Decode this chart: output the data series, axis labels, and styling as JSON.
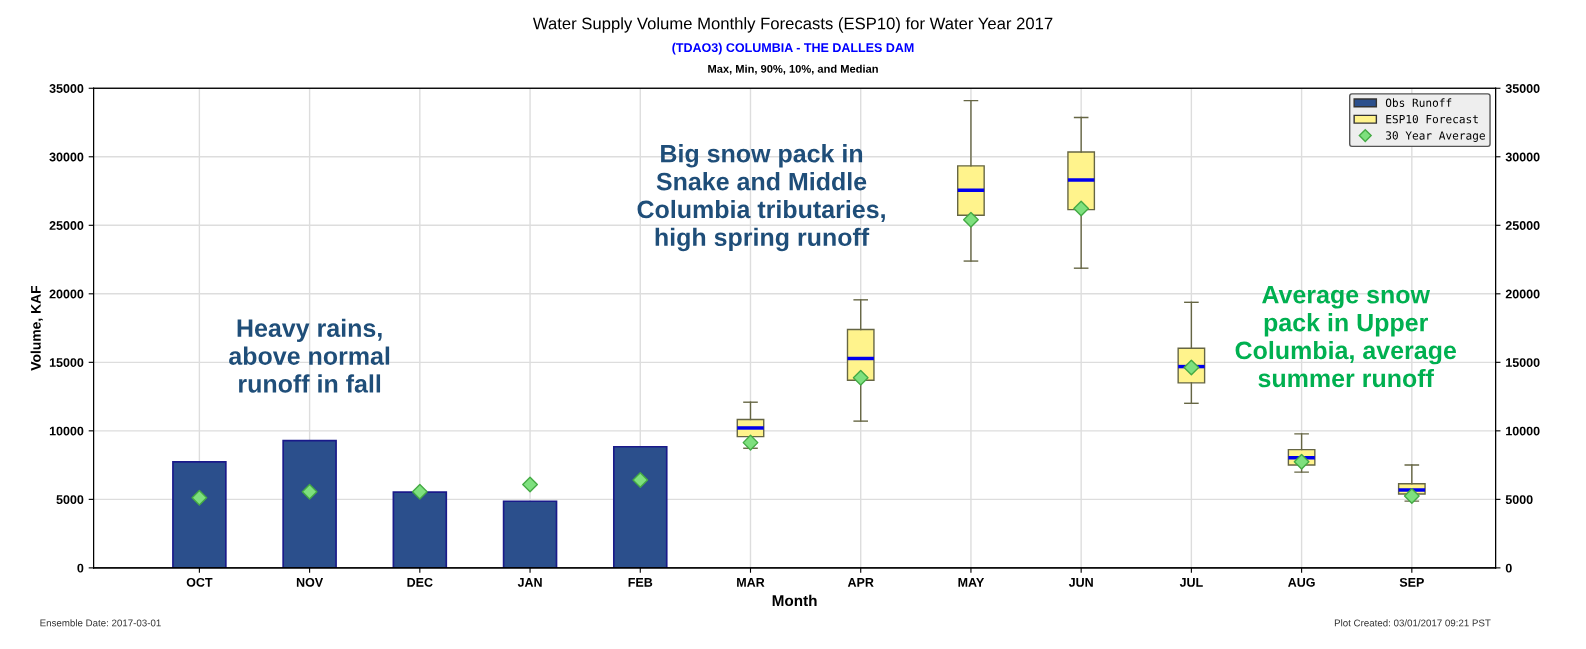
{
  "chart_data": {
    "type": "bar",
    "title": "Water Supply Volume Monthly Forecasts (ESP10) for Water Year 2017",
    "subtitle": "(TDAO3) COLUMBIA - THE DALLES DAM",
    "xlabel": "Month",
    "ylabel": "Volume, KAF",
    "categories": [
      "OCT",
      "NOV",
      "DEC",
      "JAN",
      "FEB",
      "MAR",
      "APR",
      "MAY",
      "JUN",
      "JUL",
      "AUG",
      "SEP"
    ],
    "series": [
      {
        "name": "Obs Runoff",
        "color": "#2b4f8c",
        "values": [
          7740,
          9290,
          5530,
          4860,
          8840,
          null,
          null,
          null,
          null,
          null,
          null,
          null
        ]
      },
      {
        "name": "ESP10 Forecast",
        "type": "box",
        "color": "#fff38c",
        "boxes": [
          null,
          null,
          null,
          null,
          null,
          {
            "low": 8730,
            "q1": 9580,
            "median": 10210,
            "q3": 10830,
            "high": 12090
          },
          {
            "low": 10710,
            "q1": 13690,
            "median": 15280,
            "q3": 17400,
            "high": 19560
          },
          {
            "low": 22390,
            "q1": 25730,
            "median": 27560,
            "q3": 29340,
            "high": 34100
          },
          {
            "low": 21870,
            "q1": 26140,
            "median": 28300,
            "q3": 30350,
            "high": 32870
          },
          {
            "low": 12010,
            "q1": 13500,
            "median": 14690,
            "q3": 16030,
            "high": 19380
          },
          {
            "low": 6990,
            "q1": 7510,
            "median": 8030,
            "q3": 8630,
            "high": 9780
          },
          {
            "low": 4870,
            "q1": 5390,
            "median": 5690,
            "q3": 6140,
            "high": 7510
          }
        ]
      },
      {
        "name": "30 Year Average",
        "type": "scatter",
        "color": "#7ee07e",
        "marker": "diamond",
        "values": [
          5120,
          5560,
          5560,
          6080,
          6410,
          9140,
          13870,
          25400,
          26220,
          14620,
          7740,
          5240
        ]
      }
    ],
    "ylim": [
      0,
      35000
    ],
    "yticks": [
      0,
      5000,
      10000,
      15000,
      20000,
      25000,
      30000,
      35000
    ],
    "y2lim": [
      0,
      35000
    ],
    "y2ticks": [
      0,
      5000,
      10000,
      15000,
      20000,
      25000,
      30000,
      35000
    ],
    "grid": true,
    "legend": "top right",
    "annotations": [
      "Max, Min, 90%, 10%, and Median",
      "Heavy rains,\nabove normal\nrunoff in fall",
      "Big snow pack in\nSnake and Middle\nColumbia tributaries,\nhigh spring runoff",
      "Average snow\npack in Upper\nColumbia, average\nsummer runoff",
      "Ensemble Date: 2017-03-01",
      "Plot Created: 03/01/2017 09:21 PST"
    ]
  }
}
